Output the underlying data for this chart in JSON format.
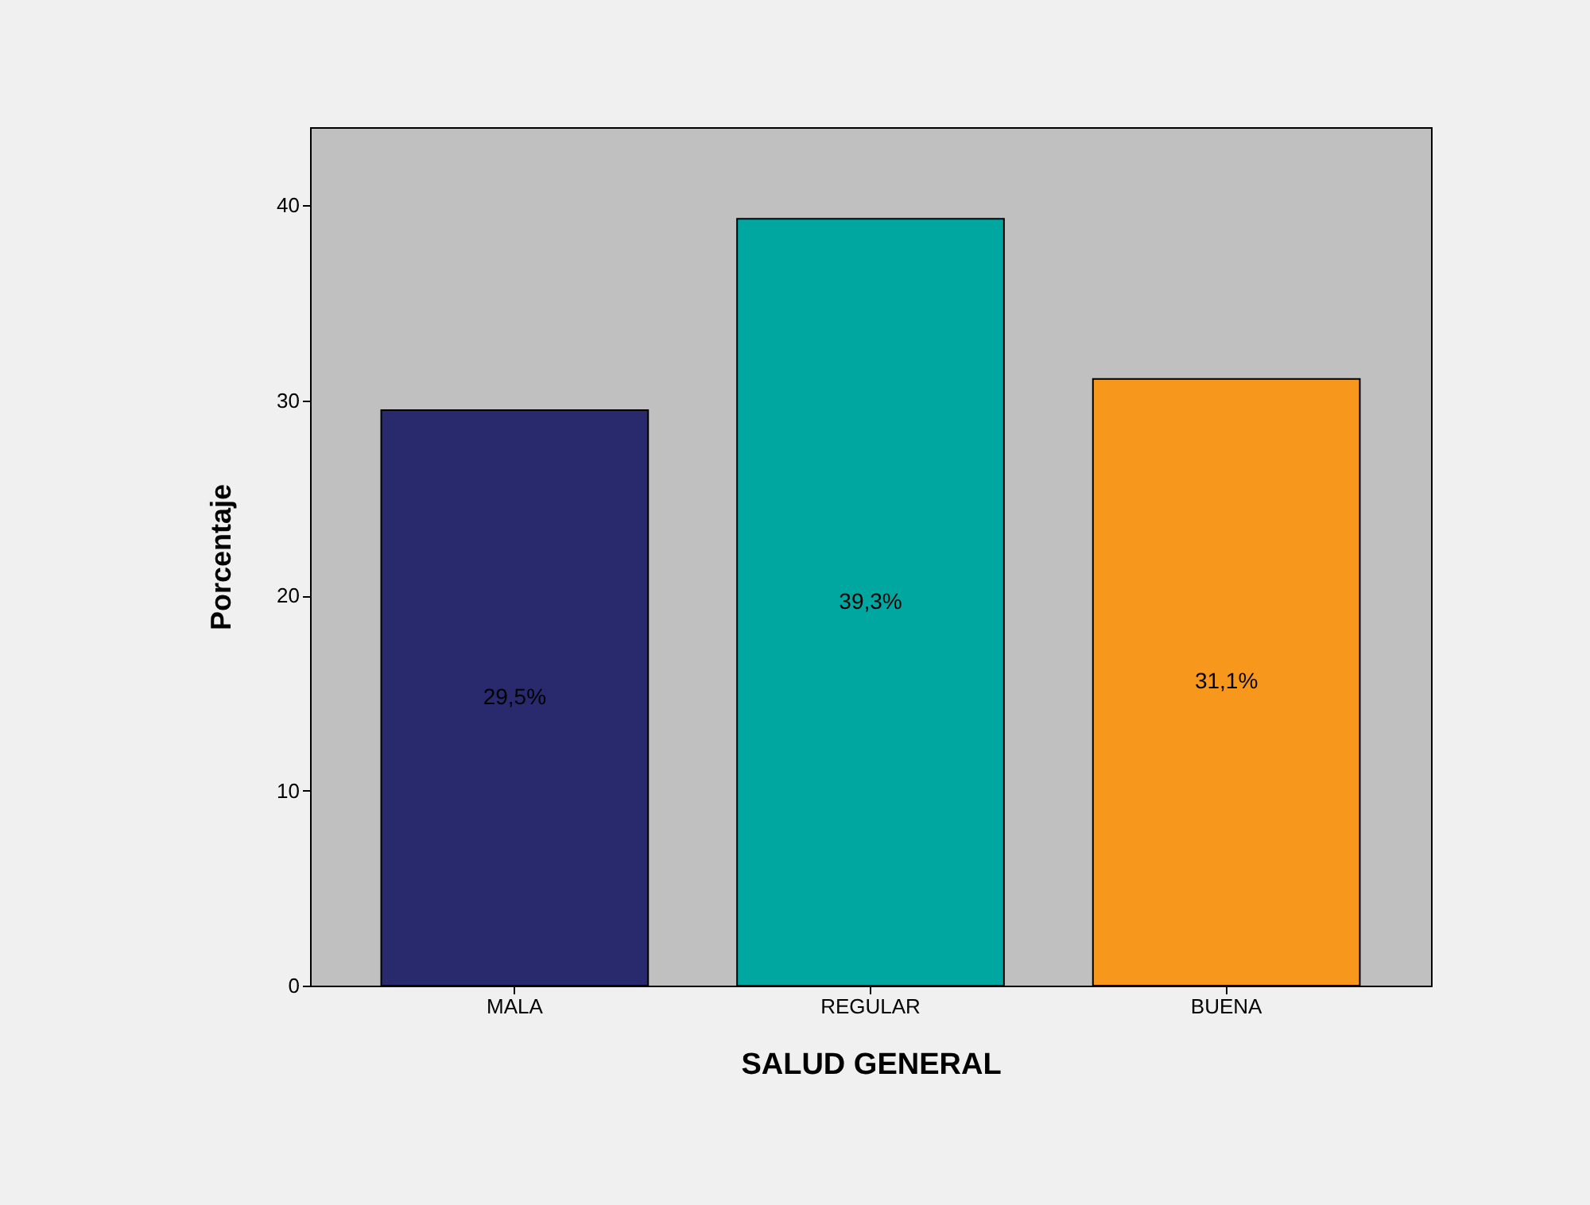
{
  "chart_data": {
    "type": "bar",
    "xlabel": "SALUD GENERAL",
    "ylabel": "Porcentaje",
    "categories": [
      "MALA",
      "REGULAR",
      "BUENA"
    ],
    "values": [
      29.5,
      39.3,
      31.1
    ],
    "colors": [
      "#29296e",
      "#00a6a0",
      "#f7981d"
    ],
    "value_labels": [
      "29,5%",
      "39,3%",
      "31,1%"
    ],
    "ylim": [
      0,
      44
    ],
    "yticks": [
      0,
      10,
      20,
      30,
      40
    ],
    "grid": false
  }
}
